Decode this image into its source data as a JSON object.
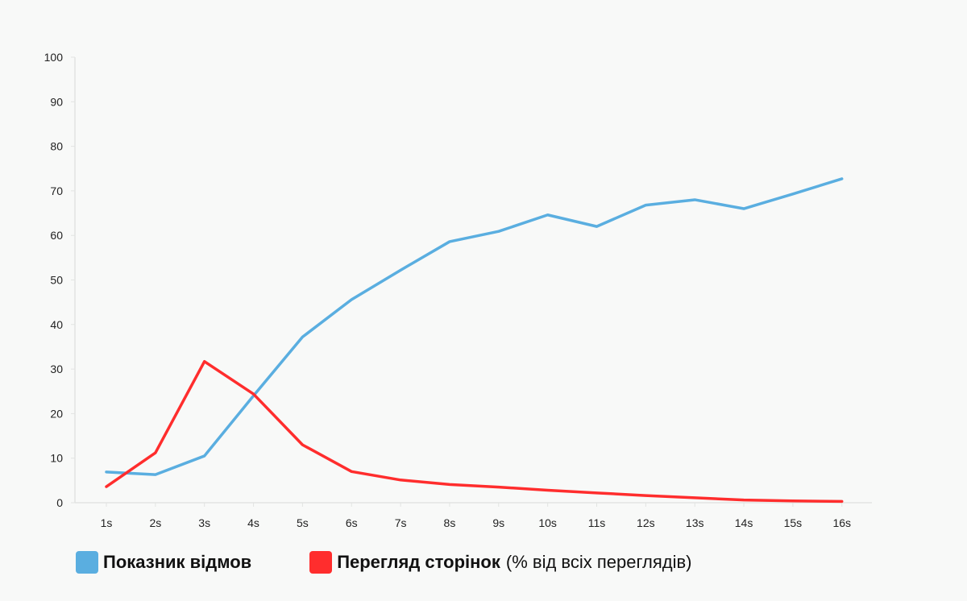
{
  "chart_data": {
    "type": "line",
    "categories": [
      "1s",
      "2s",
      "3s",
      "4s",
      "5s",
      "6s",
      "7s",
      "8s",
      "9s",
      "10s",
      "11s",
      "12s",
      "13s",
      "14s",
      "15s",
      "16s"
    ],
    "ylim": [
      0,
      100
    ],
    "yticks": [
      0,
      10,
      20,
      30,
      40,
      50,
      60,
      70,
      80,
      90,
      100
    ],
    "grid": false,
    "legend_position": "bottom-left",
    "series": [
      {
        "name": "Показник відмов",
        "color": "#5aaee0",
        "values": [
          6.9,
          6.3,
          10.5,
          24.0,
          37.2,
          45.6,
          52.2,
          58.6,
          60.9,
          64.6,
          62.0,
          66.8,
          68.0,
          66.0,
          69.3,
          72.7
        ]
      },
      {
        "name": "Перегляд сторінок",
        "name_suffix": "(% від всіх переглядів)",
        "color": "#ff2d2d",
        "values": [
          3.6,
          11.2,
          31.7,
          24.4,
          13.0,
          7.0,
          5.1,
          4.1,
          3.5,
          2.8,
          2.2,
          1.6,
          1.1,
          0.6,
          0.4,
          0.3
        ]
      }
    ]
  }
}
